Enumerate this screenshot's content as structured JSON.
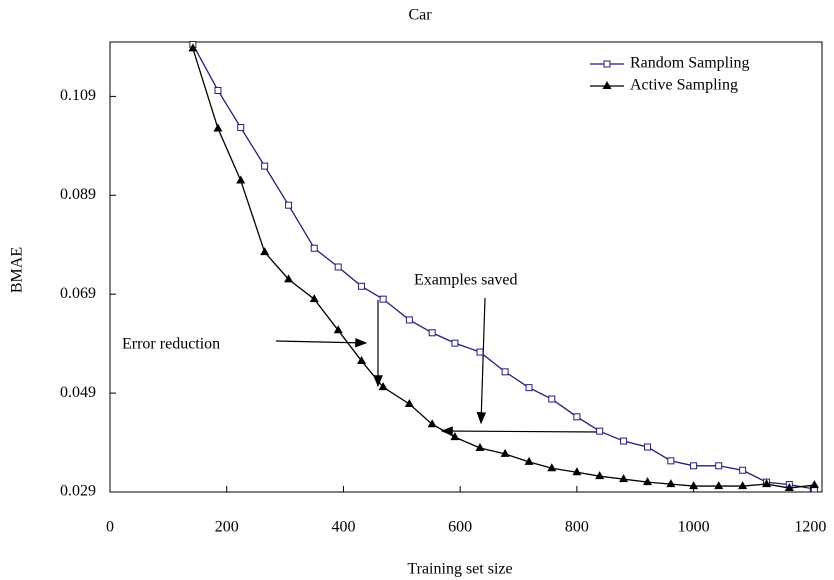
{
  "chart_data": {
    "type": "line",
    "title": "Car",
    "x_label": "Training set size",
    "y_label": "BMAE",
    "xlim": [
      0,
      1220
    ],
    "xticks": [
      0,
      200,
      400,
      600,
      800,
      1000,
      1200
    ],
    "ylim": [
      0.029,
      0.12
    ],
    "yticks": [
      0.029,
      0.049,
      0.069,
      0.089,
      0.109
    ],
    "legend": "upper right",
    "annotations": [
      "Examples saved",
      "Error reduction"
    ],
    "x": [
      142,
      185,
      224,
      265,
      306,
      350,
      391,
      431,
      468,
      513,
      552,
      591,
      634,
      677,
      718,
      757,
      800,
      839,
      880,
      921,
      961,
      1000,
      1043,
      1084,
      1125,
      1164,
      1207
    ],
    "series": [
      {
        "name": "Random Sampling",
        "color": "#1f1f7a",
        "marker": "square",
        "values": [
          0.1195,
          0.1102,
          0.1027,
          0.0949,
          0.087,
          0.0783,
          0.0745,
          0.0706,
          0.068,
          0.0638,
          0.0612,
          0.0591,
          0.0573,
          0.0533,
          0.0501,
          0.0478,
          0.0442,
          0.0413,
          0.0393,
          0.0381,
          0.0353,
          0.0343,
          0.0343,
          0.0334,
          0.031,
          0.0305,
          0.0296
        ]
      },
      {
        "name": "Active Sampling",
        "color": "#000000",
        "marker": "triangle",
        "values": [
          0.1187,
          0.1025,
          0.092,
          0.0775,
          0.072,
          0.068,
          0.0617,
          0.0555,
          0.0502,
          0.0468,
          0.0427,
          0.0401,
          0.0379,
          0.0367,
          0.0351,
          0.0338,
          0.033,
          0.0322,
          0.0316,
          0.031,
          0.0306,
          0.0302,
          0.0302,
          0.0302,
          0.0306,
          0.0298,
          0.0304
        ]
      }
    ]
  }
}
